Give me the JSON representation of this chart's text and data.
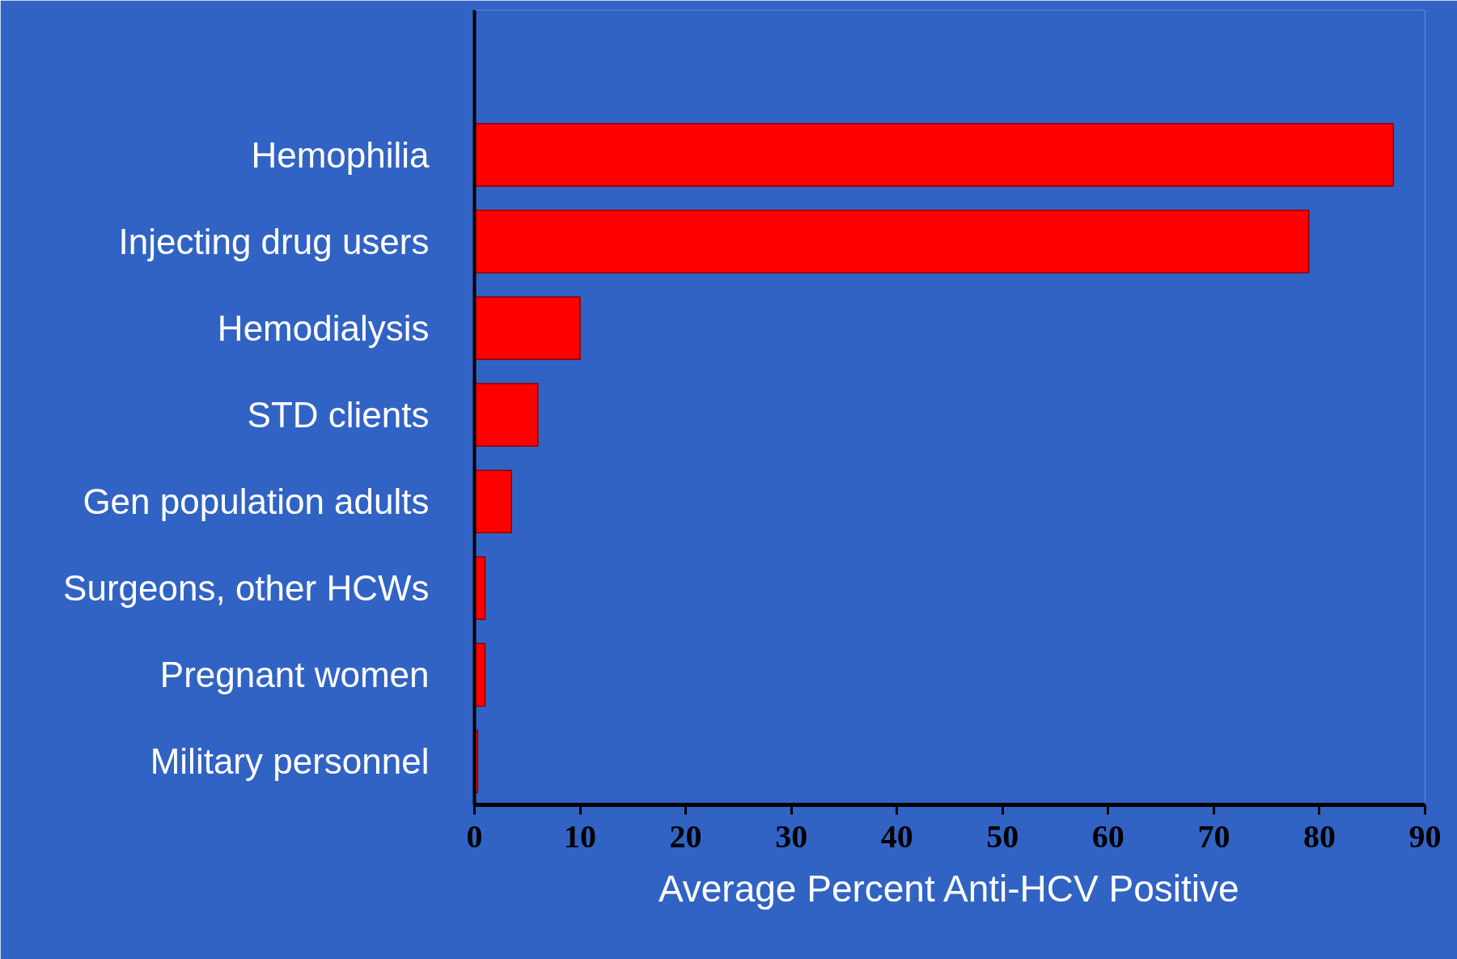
{
  "chart_data": {
    "type": "bar",
    "orientation": "horizontal",
    "categories": [
      "Hemophilia",
      "Injecting drug users",
      "Hemodialysis",
      "STD clients",
      "Gen population adults",
      "Surgeons, other HCWs",
      "Pregnant women",
      "Military personnel"
    ],
    "values": [
      87,
      79,
      10,
      6,
      3.5,
      1,
      1,
      0.3
    ],
    "color": "#ff0000",
    "xlabel": "Average Percent Anti-HCV Positive",
    "xlim": [
      0,
      90
    ],
    "xticks": [
      0,
      10,
      20,
      30,
      40,
      50,
      60,
      70,
      80,
      90
    ],
    "grid": false
  }
}
